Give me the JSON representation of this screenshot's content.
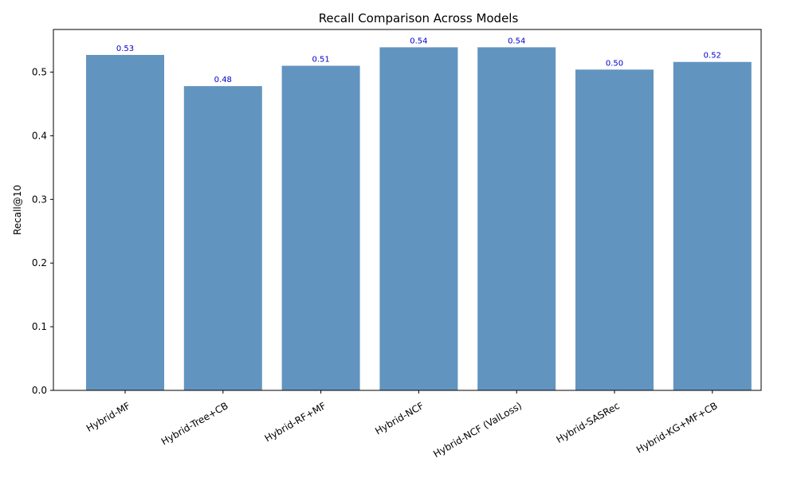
{
  "chart_data": {
    "type": "bar",
    "title": "Recall Comparison Across Models",
    "xlabel": "",
    "ylabel": "Recall@10",
    "categories": [
      "Hybrid-MF",
      "Hybrid-Tree+CB",
      "Hybrid-RF+MF",
      "Hybrid-NCF",
      "Hybrid-NCF (ValLoss)",
      "Hybrid-SASRec",
      "Hybrid-KG+MF+CB"
    ],
    "values": [
      0.527,
      0.478,
      0.51,
      0.539,
      0.539,
      0.504,
      0.516
    ],
    "value_labels": [
      "0.53",
      "0.48",
      "0.51",
      "0.54",
      "0.54",
      "0.50",
      "0.52"
    ],
    "ylim": [
      0,
      0.567
    ],
    "yticks": [
      0.0,
      0.1,
      0.2,
      0.3,
      0.4,
      0.5
    ],
    "ytick_labels": [
      "0.0",
      "0.1",
      "0.2",
      "0.3",
      "0.4",
      "0.5"
    ],
    "grid": false,
    "legend": "none",
    "bar_color": "#6294c0",
    "label_color": "#0000cc"
  }
}
